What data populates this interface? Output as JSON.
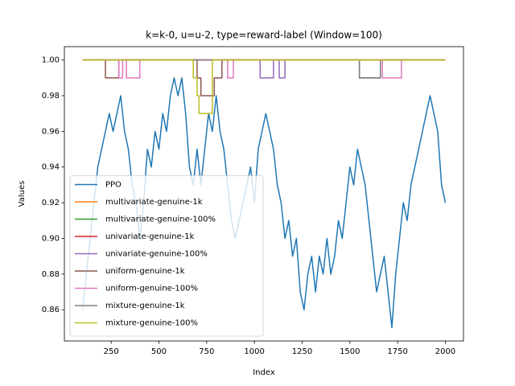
{
  "chart_data": {
    "type": "line",
    "title": "k=k-0, u=u-2, type=reward-label (Window=100)",
    "xlabel": "Index",
    "ylabel": "Values",
    "xlim": [
      5,
      2095
    ],
    "ylim": [
      0.8425,
      1.0075
    ],
    "xticks": [
      250,
      500,
      750,
      1000,
      1250,
      1500,
      1750,
      2000
    ],
    "yticks": [
      0.86,
      0.88,
      {
        "value": 0.9,
        "label": "0.90"
      },
      0.92,
      0.94,
      0.96,
      0.98,
      {
        "value": 1,
        "label": "1.00"
      }
    ],
    "legend": "lower left",
    "series": [
      {
        "name": "PPO",
        "color": "#1f77b4",
        "x": [
          100,
          120,
          140,
          160,
          180,
          200,
          220,
          240,
          260,
          280,
          300,
          320,
          340,
          360,
          380,
          400,
          420,
          440,
          460,
          480,
          500,
          520,
          540,
          560,
          580,
          600,
          620,
          640,
          660,
          680,
          700,
          720,
          740,
          760,
          780,
          800,
          820,
          840,
          860,
          880,
          900,
          920,
          940,
          960,
          980,
          1000,
          1020,
          1040,
          1060,
          1080,
          1100,
          1120,
          1140,
          1160,
          1180,
          1200,
          1220,
          1240,
          1260,
          1280,
          1300,
          1320,
          1340,
          1360,
          1380,
          1400,
          1420,
          1440,
          1460,
          1480,
          1500,
          1520,
          1540,
          1560,
          1580,
          1600,
          1620,
          1640,
          1660,
          1680,
          1700,
          1720,
          1740,
          1760,
          1780,
          1800,
          1820,
          1840,
          1860,
          1880,
          1900,
          1920,
          1940,
          1960,
          1980,
          2000
        ],
        "values": [
          0.86,
          0.88,
          0.9,
          0.92,
          0.94,
          0.95,
          0.96,
          0.97,
          0.96,
          0.97,
          0.98,
          0.96,
          0.95,
          0.93,
          0.92,
          0.9,
          0.92,
          0.95,
          0.94,
          0.96,
          0.95,
          0.97,
          0.96,
          0.98,
          0.99,
          0.98,
          0.99,
          0.97,
          0.94,
          0.93,
          0.95,
          0.93,
          0.95,
          0.97,
          0.96,
          0.98,
          0.96,
          0.95,
          0.93,
          0.91,
          0.9,
          0.91,
          0.92,
          0.93,
          0.94,
          0.92,
          0.95,
          0.96,
          0.97,
          0.96,
          0.95,
          0.93,
          0.92,
          0.9,
          0.91,
          0.89,
          0.9,
          0.87,
          0.86,
          0.88,
          0.89,
          0.87,
          0.89,
          0.88,
          0.9,
          0.88,
          0.89,
          0.91,
          0.9,
          0.92,
          0.94,
          0.93,
          0.95,
          0.94,
          0.93,
          0.91,
          0.89,
          0.87,
          0.88,
          0.89,
          0.87,
          0.85,
          0.88,
          0.9,
          0.92,
          0.91,
          0.93,
          0.94,
          0.95,
          0.96,
          0.97,
          0.98,
          0.97,
          0.96,
          0.93,
          0.92
        ]
      },
      {
        "name": "multivariate-genuine-1k",
        "color": "#ff7f0e",
        "x": [
          100,
          2000
        ],
        "values": [
          1,
          1
        ]
      },
      {
        "name": "multivariate-genuine-100%",
        "color": "#2ca02c",
        "x": [
          100,
          2000
        ],
        "values": [
          1,
          1
        ]
      },
      {
        "name": "univariate-genuine-1k",
        "color": "#d62728",
        "x": [
          100,
          2000
        ],
        "values": [
          1,
          1
        ]
      },
      {
        "name": "univariate-genuine-100%",
        "color": "#9467bd",
        "x": [
          100,
          1030,
          1030,
          1100,
          1100,
          1130,
          1130,
          1160,
          1160,
          2000
        ],
        "values": [
          1,
          1,
          0.99,
          0.99,
          1,
          1,
          0.99,
          0.99,
          1,
          1
        ]
      },
      {
        "name": "uniform-genuine-1k",
        "color": "#8c564b",
        "x": [
          100,
          220,
          220,
          290,
          290,
          700,
          700,
          720,
          720,
          790,
          790,
          830,
          830,
          1550,
          1550,
          1660,
          1660,
          2000
        ],
        "values": [
          1,
          1,
          0.99,
          0.99,
          1,
          1,
          0.99,
          0.99,
          0.98,
          0.98,
          0.99,
          0.99,
          1,
          1,
          0.99,
          0.99,
          1,
          1
        ]
      },
      {
        "name": "uniform-genuine-100%",
        "color": "#e377c2",
        "x": [
          100,
          290,
          290,
          310,
          310,
          330,
          330,
          400,
          400,
          860,
          860,
          890,
          890,
          1670,
          1670,
          1770,
          1770,
          2000
        ],
        "values": [
          1,
          1,
          0.99,
          0.99,
          1,
          1,
          0.99,
          0.99,
          1,
          1,
          0.99,
          0.99,
          1,
          1,
          0.99,
          0.99,
          1,
          1
        ]
      },
      {
        "name": "mixture-genuine-1k",
        "color": "#7f7f7f",
        "x": [
          100,
          1550,
          1550,
          1660,
          1660,
          2000
        ],
        "values": [
          1,
          1,
          0.99,
          0.99,
          1,
          1
        ]
      },
      {
        "name": "mixture-genuine-100%",
        "color": "#bcbd22",
        "x": [
          100,
          680,
          680,
          700,
          700,
          710,
          710,
          780,
          780,
          2000
        ],
        "values": [
          1,
          1,
          0.99,
          0.99,
          0.98,
          0.98,
          0.97,
          0.97,
          1,
          1
        ]
      }
    ]
  }
}
